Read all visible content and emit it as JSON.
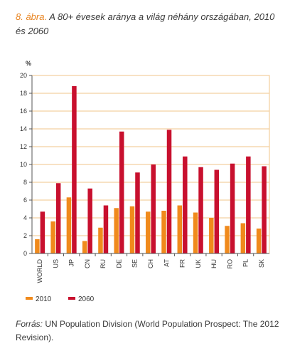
{
  "caption": {
    "label": "8. ábra.",
    "text": "A 80+ évesek aránya a világ néhány országában, 2010 és 2060"
  },
  "source": {
    "label": "Forrás:",
    "text": "UN Population Division (World Population Prospect: The 2012 Revision)."
  },
  "colors": {
    "s2010": "#f08a1c",
    "s2060": "#c8102e",
    "grid": "#f2c58a",
    "axis": "#555555"
  },
  "chart_data": {
    "type": "bar",
    "ylabel": "%",
    "ylim": [
      0,
      20
    ],
    "yticks": [
      "0",
      "2",
      "4",
      "6",
      "8",
      "10",
      "12",
      "14",
      "16",
      "18",
      "20"
    ],
    "grid": true,
    "legend_position": "bottom-left",
    "categories": [
      "WORLD",
      "US",
      "JP",
      "CN",
      "RU",
      "DE",
      "SE",
      "CH",
      "AT",
      "FR",
      "UK",
      "HU",
      "RO",
      "PL",
      "SK"
    ],
    "series": [
      {
        "name": "2010",
        "values": [
          1.6,
          3.6,
          6.3,
          1.4,
          2.9,
          5.1,
          5.3,
          4.7,
          4.8,
          5.4,
          4.6,
          4.0,
          3.1,
          3.4,
          2.8
        ]
      },
      {
        "name": "2060",
        "values": [
          4.7,
          7.9,
          18.8,
          7.3,
          5.4,
          13.7,
          9.1,
          10.0,
          13.9,
          10.9,
          9.7,
          9.4,
          10.1,
          10.9,
          9.8
        ]
      }
    ]
  }
}
